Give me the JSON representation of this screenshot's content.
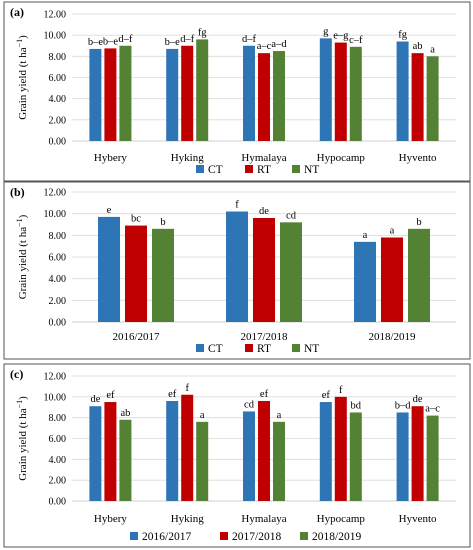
{
  "chart_data": [
    {
      "type": "bar",
      "panel_label": "(a)",
      "ylabel": "Grain yield (t ha",
      "ylabel_sup": "−1",
      "ylabel_close": ")",
      "ylim": [
        0,
        12
      ],
      "yticks": [
        "0.00",
        "2.00",
        "4.00",
        "6.00",
        "8.00",
        "10.00",
        "12.00"
      ],
      "categories": [
        "Hybery",
        "Hyking",
        "Hymalaya",
        "Hypocamp",
        "Hyvento"
      ],
      "series": [
        {
          "name": "CT",
          "color": "#2E75B6",
          "values": [
            8.7,
            8.7,
            9.0,
            9.7,
            9.4
          ],
          "labels": [
            "b–e",
            "b–e",
            "d–f",
            "g",
            "fg"
          ]
        },
        {
          "name": "RT",
          "color": "#C00000",
          "values": [
            8.75,
            9.0,
            8.3,
            9.3,
            8.3
          ],
          "labels": [
            "b–e",
            "d–f",
            "a–c",
            "e–g",
            "ab"
          ]
        },
        {
          "name": "NT",
          "color": "#548235",
          "values": [
            9.0,
            9.6,
            8.5,
            8.9,
            8.0
          ],
          "labels": [
            "d–f",
            "fg",
            "a–d",
            "c–f",
            "a"
          ]
        }
      ],
      "legend": "bottom-center",
      "grid": true
    },
    {
      "type": "bar",
      "panel_label": "(b)",
      "ylabel": "Grain yield (t ha",
      "ylabel_sup": "−1",
      "ylabel_close": ")",
      "ylim": [
        0,
        12
      ],
      "yticks": [
        "0.00",
        "2.00",
        "4.00",
        "6.00",
        "8.00",
        "10.00",
        "12.00"
      ],
      "categories": [
        "2016/2017",
        "2017/2018",
        "2018/2019"
      ],
      "series": [
        {
          "name": "CT",
          "color": "#2E75B6",
          "values": [
            9.7,
            10.2,
            7.4
          ],
          "labels": [
            "e",
            "f",
            "a"
          ]
        },
        {
          "name": "RT",
          "color": "#C00000",
          "values": [
            8.9,
            9.6,
            7.8
          ],
          "labels": [
            "bc",
            "de",
            "a"
          ]
        },
        {
          "name": "NT",
          "color": "#548235",
          "values": [
            8.6,
            9.2,
            8.6
          ],
          "labels": [
            "b",
            "cd",
            "b"
          ]
        }
      ],
      "legend": "bottom-center",
      "grid": true
    },
    {
      "type": "bar",
      "panel_label": "(c)",
      "ylabel": "Grain yield (t ha",
      "ylabel_sup": "−1",
      "ylabel_close": ")",
      "ylim": [
        0,
        12
      ],
      "yticks": [
        "0.00",
        "2.00",
        "4.00",
        "6.00",
        "8.00",
        "10.00",
        "12.00"
      ],
      "categories": [
        "Hybery",
        "Hyking",
        "Hymalaya",
        "Hypocamp",
        "Hyvento"
      ],
      "series": [
        {
          "name": "2016/2017",
          "color": "#2E75B6",
          "values": [
            9.1,
            9.6,
            8.6,
            9.5,
            8.5
          ],
          "labels": [
            "de",
            "ef",
            "cd",
            "ef",
            "b–d"
          ]
        },
        {
          "name": "2017/2018",
          "color": "#C00000",
          "values": [
            9.5,
            10.2,
            9.6,
            10.0,
            9.1
          ],
          "labels": [
            "ef",
            "f",
            "ef",
            "f",
            "de"
          ]
        },
        {
          "name": "2018/2019",
          "color": "#548235",
          "values": [
            7.8,
            7.6,
            7.6,
            8.5,
            8.2
          ],
          "labels": [
            "ab",
            "a",
            "a",
            "bd",
            "a–c"
          ]
        }
      ],
      "legend": "bottom-center",
      "grid": true
    }
  ]
}
